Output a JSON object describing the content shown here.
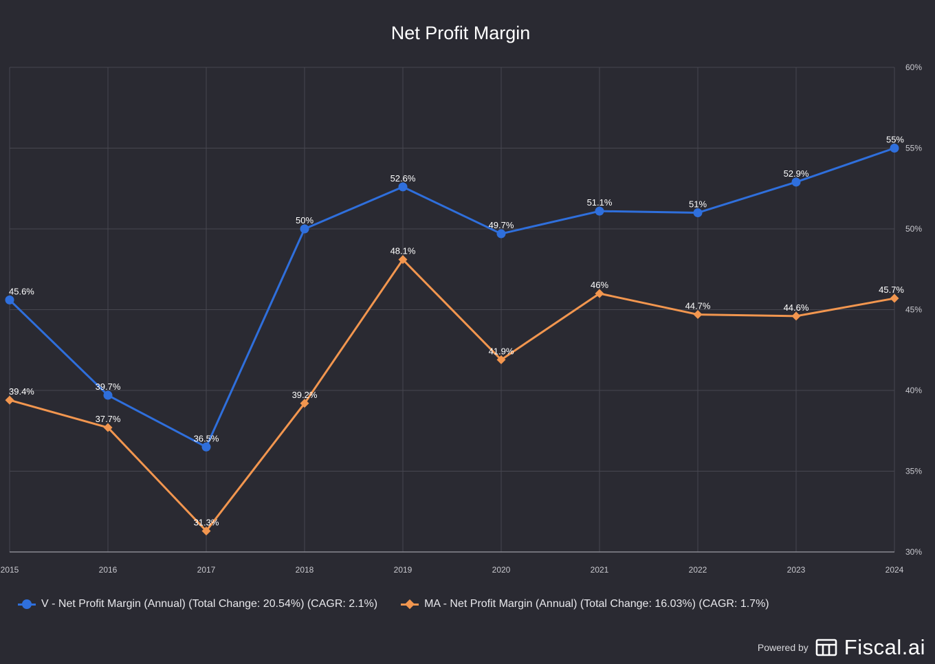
{
  "chart_data": {
    "type": "line",
    "title": "Net Profit Margin",
    "categories": [
      "2015",
      "2016",
      "2017",
      "2018",
      "2019",
      "2020",
      "2021",
      "2022",
      "2023",
      "2024"
    ],
    "y_ticks": [
      "60%",
      "55%",
      "50%",
      "45%",
      "40%",
      "35%",
      "30%"
    ],
    "ylim": [
      30,
      60
    ],
    "grid": true,
    "legend_position": "bottom-left",
    "series": [
      {
        "name": "V - Net Profit Margin (Annual) (Total Change: 20.54%) (CAGR: 2.1%)",
        "color": "#2f6fdc",
        "marker": "circle",
        "values": [
          45.6,
          39.7,
          36.5,
          50.0,
          52.6,
          49.7,
          51.1,
          51.0,
          52.9,
          55.0
        ],
        "labels": [
          "45.6%",
          "39.7%",
          "36.5%",
          "50%",
          "52.6%",
          "49.7%",
          "51.1%",
          "51%",
          "52.9%",
          "55%"
        ]
      },
      {
        "name": "MA - Net Profit Margin (Annual) (Total Change: 16.03%) (CAGR: 1.7%)",
        "color": "#f2964f",
        "marker": "diamond",
        "values": [
          39.4,
          37.7,
          31.3,
          39.2,
          48.1,
          41.9,
          46.0,
          44.7,
          44.6,
          45.7
        ],
        "labels": [
          "39.4%",
          "37.7%",
          "31.3%",
          "39.2%",
          "48.1%",
          "41.9%",
          "46%",
          "44.7%",
          "44.6%",
          "45.7%"
        ]
      }
    ]
  },
  "colors": {
    "background": "#2a2a32",
    "grid": "#474750",
    "axis": "#8a8a92"
  },
  "footer": {
    "powered_by": "Powered by",
    "brand": "Fiscal.ai",
    "brand_icon": "fiscal-logo-icon"
  }
}
